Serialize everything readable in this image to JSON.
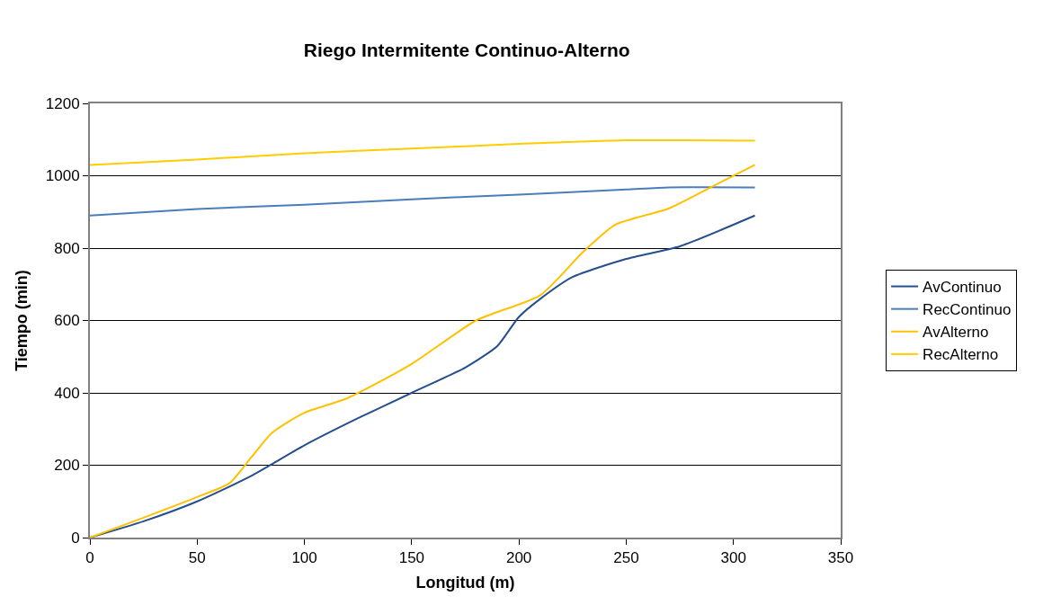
{
  "chart_data": {
    "type": "line",
    "title": "Riego Intermitente Continuo-Alterno",
    "xlabel": "Longitud (m)",
    "ylabel": "Tiempo (min)",
    "xlim": [
      0,
      350
    ],
    "xticks": [
      0,
      50,
      100,
      150,
      200,
      250,
      300,
      350
    ],
    "ylim": [
      0,
      1200
    ],
    "yticks": [
      0,
      200,
      400,
      600,
      800,
      1000,
      1200
    ],
    "grid": "y",
    "legend": "right",
    "marker": "none",
    "line_style": "solid",
    "series": [
      {
        "name": "AvContinuo",
        "color": "#254f8c",
        "x": [
          0,
          25,
          50,
          75,
          100,
          125,
          150,
          175,
          190,
          200,
          210,
          225,
          250,
          275,
          310
        ],
        "values": [
          0,
          45,
          100,
          170,
          255,
          330,
          400,
          470,
          530,
          610,
          660,
          720,
          770,
          805,
          890
        ]
      },
      {
        "name": "RecContinuo",
        "color": "#4a7ebb",
        "x": [
          0,
          50,
          100,
          150,
          200,
          250,
          270,
          310
        ],
        "values": [
          890,
          908,
          920,
          935,
          948,
          962,
          968,
          968
        ]
      },
      {
        "name": "AvAlterno",
        "color": "#ffc000",
        "x": [
          0,
          25,
          50,
          65,
          75,
          85,
          100,
          120,
          150,
          180,
          210,
          230,
          245,
          270,
          290,
          310
        ],
        "values": [
          0,
          55,
          112,
          150,
          220,
          290,
          345,
          385,
          480,
          600,
          670,
          790,
          865,
          910,
          970,
          1030
        ]
      },
      {
        "name": "RecAlterno",
        "color": "#ffcc00",
        "x": [
          0,
          50,
          100,
          150,
          200,
          250,
          310
        ],
        "values": [
          1030,
          1045,
          1062,
          1075,
          1088,
          1098,
          1097
        ]
      }
    ]
  }
}
